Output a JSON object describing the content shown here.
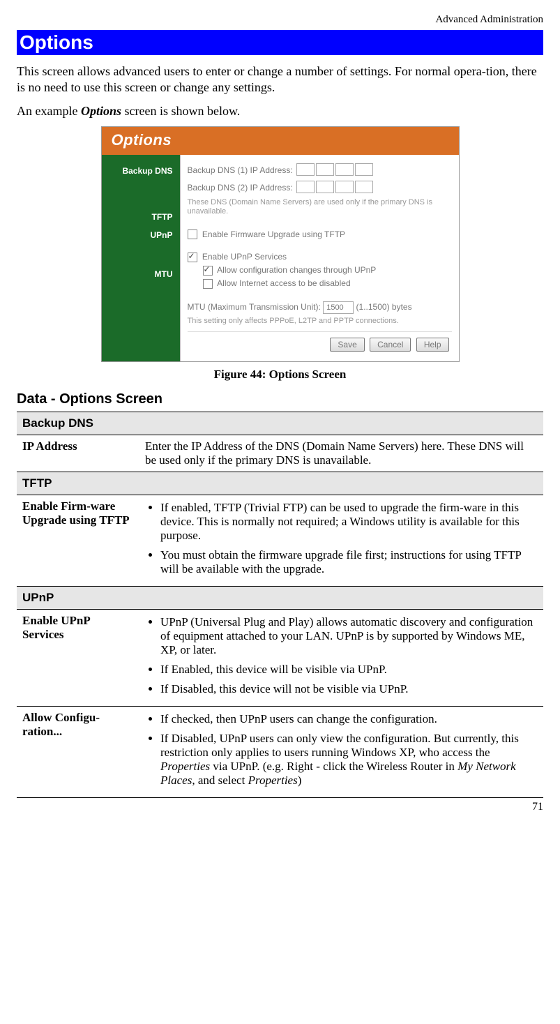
{
  "page": {
    "header_right": "Advanced Administration",
    "title": "Options",
    "intro_1": "This screen allows advanced users to enter or change a number of settings. For normal opera-tion, there is no need to use this screen or change any settings.",
    "intro_2a": "An example ",
    "intro_2b": "Options",
    "intro_2c": " screen is shown below.",
    "figure_caption": "Figure 44: Options Screen",
    "subheading": "Data - Options Screen",
    "page_number": "71"
  },
  "screenshot": {
    "background_color": "#ffffff",
    "header": {
      "text": "Options",
      "bg": "#d96f25",
      "color": "#ffffff"
    },
    "sidebar": {
      "bg": "#1b6b29",
      "color": "#ffffff",
      "items": [
        "Backup DNS",
        "TFTP",
        "UPnP",
        "MTU"
      ]
    },
    "main": {
      "dns1_label": "Backup DNS (1) IP Address:",
      "dns2_label": "Backup DNS (2) IP Address:",
      "dns_note": "These DNS (Domain Name Servers) are used only if the primary DNS is unavailable.",
      "tftp_label": "Enable Firmware Upgrade using TFTP",
      "tftp_checked": false,
      "upnp_enable_label": "Enable UPnP Services",
      "upnp_enable_checked": true,
      "upnp_allow_config_label": "Allow configuration changes through UPnP",
      "upnp_allow_config_checked": true,
      "upnp_allow_disable_label": "Allow Internet access to be disabled",
      "upnp_allow_disable_checked": false,
      "mtu_label": "MTU (Maximum Transmission Unit):",
      "mtu_value": "1500",
      "mtu_hint": "(1..1500) bytes",
      "mtu_note": "This setting only affects PPPoE, L2TP and PPTP connections.",
      "buttons": [
        "Save",
        "Cancel",
        "Help"
      ]
    }
  },
  "table": {
    "sections": [
      {
        "title": "Backup DNS",
        "rows": [
          {
            "label": "IP Address",
            "text": "Enter the IP Address of the DNS (Domain Name Servers) here. These DNS will be used only if the primary DNS is unavailable."
          }
        ]
      },
      {
        "title": "TFTP",
        "rows": [
          {
            "label": "Enable Firm-ware Upgrade using TFTP",
            "bullets": [
              "If enabled, TFTP (Trivial FTP) can be used to upgrade the firm-ware in this device. This is normally not required; a Windows utility is available for this purpose.",
              "You must obtain the firmware upgrade file first; instructions for using TFTP will be available with the upgrade."
            ]
          }
        ]
      },
      {
        "title": "UPnP",
        "rows": [
          {
            "label": "Enable UPnP Services",
            "bullets": [
              "UPnP (Universal Plug and Play) allows automatic discovery and configuration of equipment attached to your LAN. UPnP is by supported by Windows ME, XP, or later.",
              "If Enabled, this device will be visible via UPnP.",
              "If Disabled, this device will not be visible via UPnP."
            ]
          },
          {
            "label": "Allow Configu-ration...",
            "bullets_html": [
              "If checked, then UPnP users can change the configuration.",
              "If Disabled, UPnP users can only view the configuration. But currently, this restriction only applies to users running Windows XP, who access the <em>Properties</em> via UPnP. (e.g. Right - click the Wireless Router in <em>My Network Places</em>, and select <em>Properties</em>)"
            ]
          }
        ]
      }
    ]
  }
}
